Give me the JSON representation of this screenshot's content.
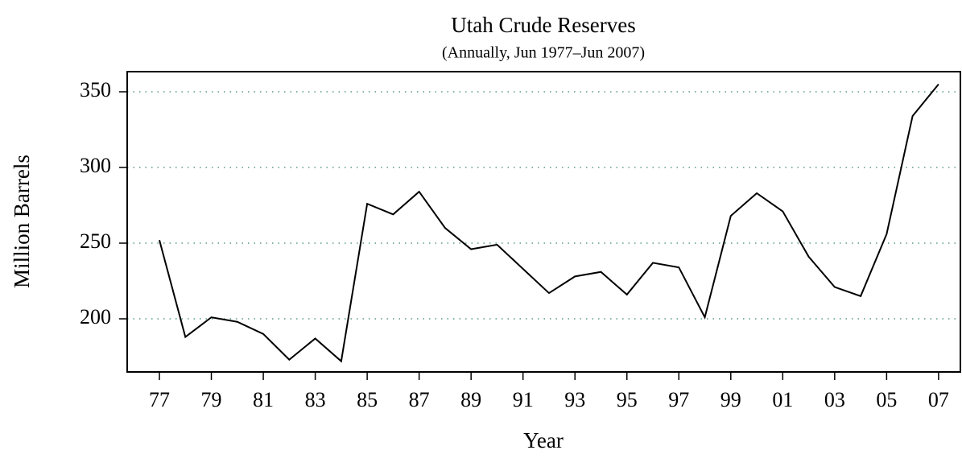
{
  "chart_data": {
    "type": "line",
    "title": "Utah Crude Reserves",
    "subtitle": "(Annually, Jun 1977–Jun 2007)",
    "x_label": "Year",
    "y_label": "Million Barrels",
    "x": [
      1977,
      1978,
      1979,
      1980,
      1981,
      1982,
      1983,
      1984,
      1985,
      1986,
      1987,
      1988,
      1989,
      1990,
      1991,
      1992,
      1993,
      1994,
      1995,
      1996,
      1997,
      1998,
      1999,
      2000,
      2001,
      2002,
      2003,
      2004,
      2005,
      2006,
      2007
    ],
    "series": [
      {
        "color": "#000000",
        "values": [
          252,
          188,
          201,
          198,
          190,
          173,
          187,
          172,
          276,
          269,
          284,
          260,
          246,
          249,
          233,
          217,
          228,
          231,
          216,
          237,
          234,
          201,
          268,
          283,
          271,
          241,
          221,
          215,
          256,
          334,
          355
        ]
      }
    ],
    "xlim": [
      1975.76,
      2007.84
    ],
    "ylim": [
      164.9,
      363.3
    ],
    "xticks": [
      {
        "value": 1977,
        "label": "77"
      },
      {
        "value": 1979,
        "label": "79"
      },
      {
        "value": 1981,
        "label": "81"
      },
      {
        "value": 1983,
        "label": "83"
      },
      {
        "value": 1985,
        "label": "85"
      },
      {
        "value": 1987,
        "label": "87"
      },
      {
        "value": 1989,
        "label": "89"
      },
      {
        "value": 1991,
        "label": "91"
      },
      {
        "value": 1993,
        "label": "93"
      },
      {
        "value": 1995,
        "label": "95"
      },
      {
        "value": 1997,
        "label": "97"
      },
      {
        "value": 1999,
        "label": "99"
      },
      {
        "value": 2001,
        "label": "01"
      },
      {
        "value": 2003,
        "label": "03"
      },
      {
        "value": 2005,
        "label": "05"
      },
      {
        "value": 2007,
        "label": "07"
      }
    ],
    "yticks": [
      200,
      250,
      300,
      350
    ],
    "grid": true,
    "grid_color": "#5a9a8a"
  }
}
